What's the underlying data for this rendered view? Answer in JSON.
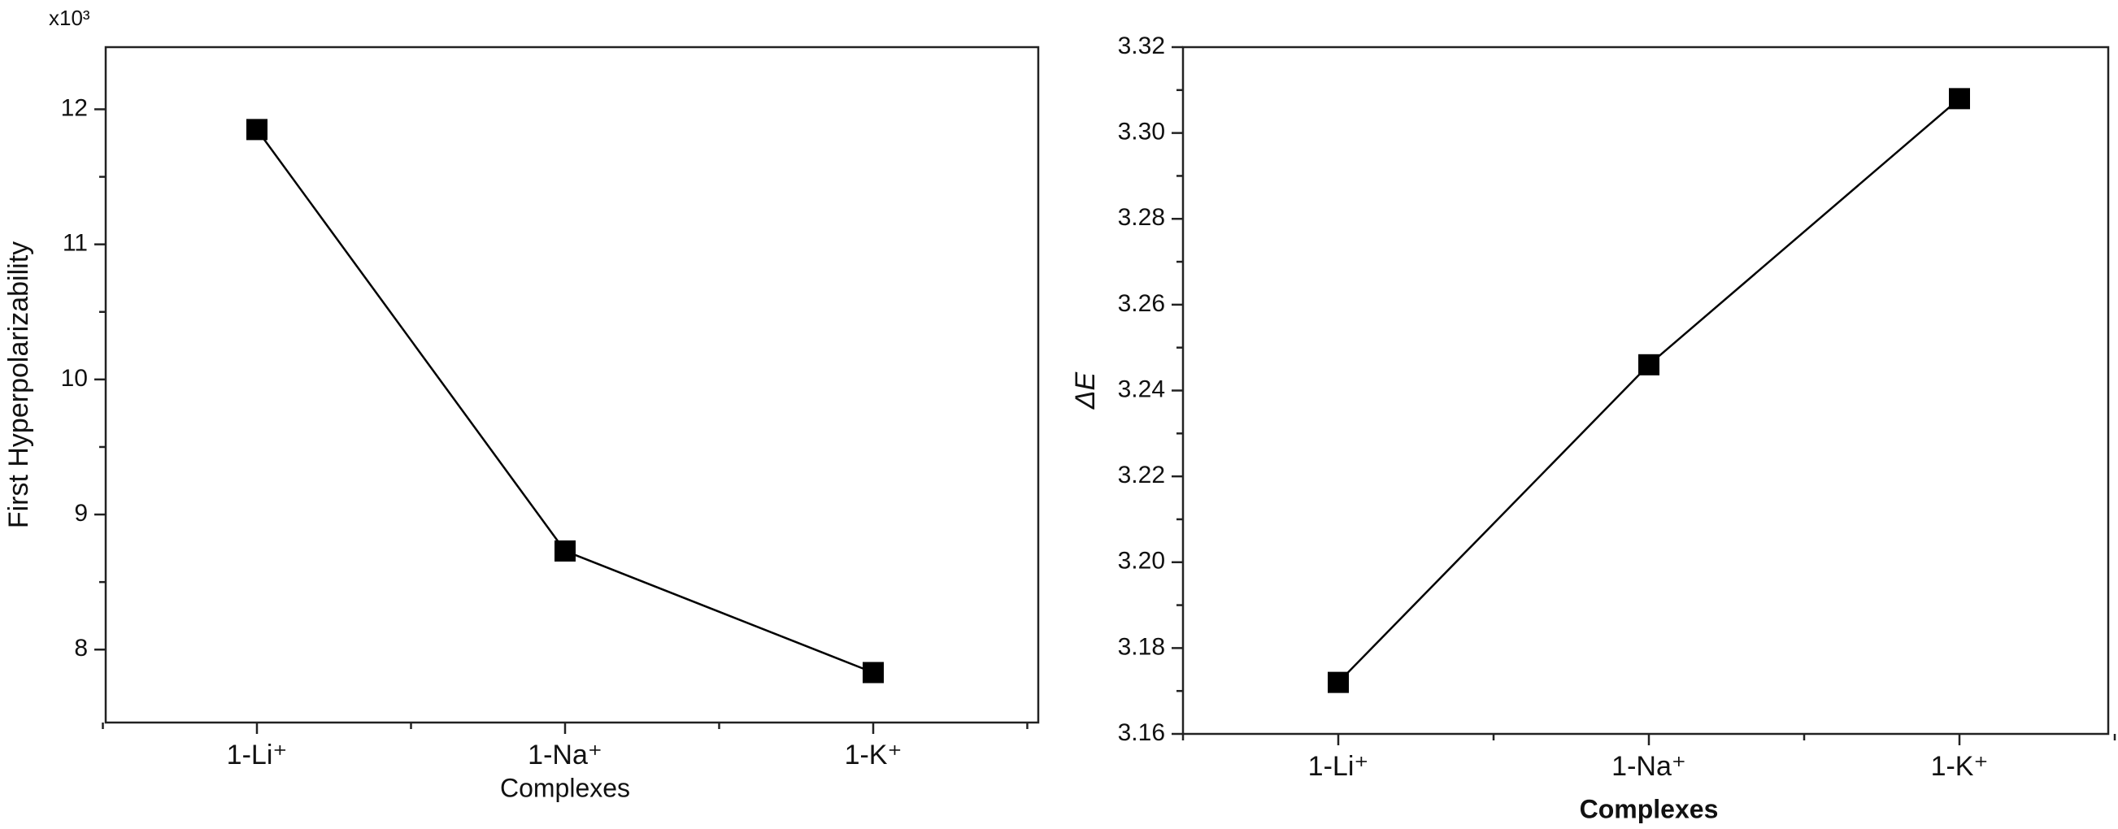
{
  "chart_data": [
    {
      "type": "line",
      "y_multiplier": "x10³",
      "ylabel": "First Hyperpolarizability",
      "xlabel": "Complexes",
      "categories": [
        "1-Li⁺",
        "1-Na⁺",
        "1-K⁺"
      ],
      "values": [
        11.85,
        8.73,
        7.83
      ],
      "color": "#000000",
      "ylim": [
        7.46,
        12.46
      ],
      "yticks": [
        8,
        9,
        10,
        11,
        12
      ]
    },
    {
      "type": "line",
      "ylabel": "ΔE",
      "xlabel": "Complexes",
      "categories": [
        "1-Li⁺",
        "1-Na⁺",
        "1-K⁺"
      ],
      "values": [
        3.172,
        3.246,
        3.308
      ],
      "color": "#000000",
      "ylim": [
        3.16,
        3.32
      ],
      "yticks": [
        3.16,
        3.18,
        {
          "value": 3.2,
          "label": "3.20"
        },
        3.22,
        3.24,
        3.26,
        3.28,
        {
          "value": 3.3,
          "label": "3.30"
        },
        3.32
      ]
    }
  ]
}
